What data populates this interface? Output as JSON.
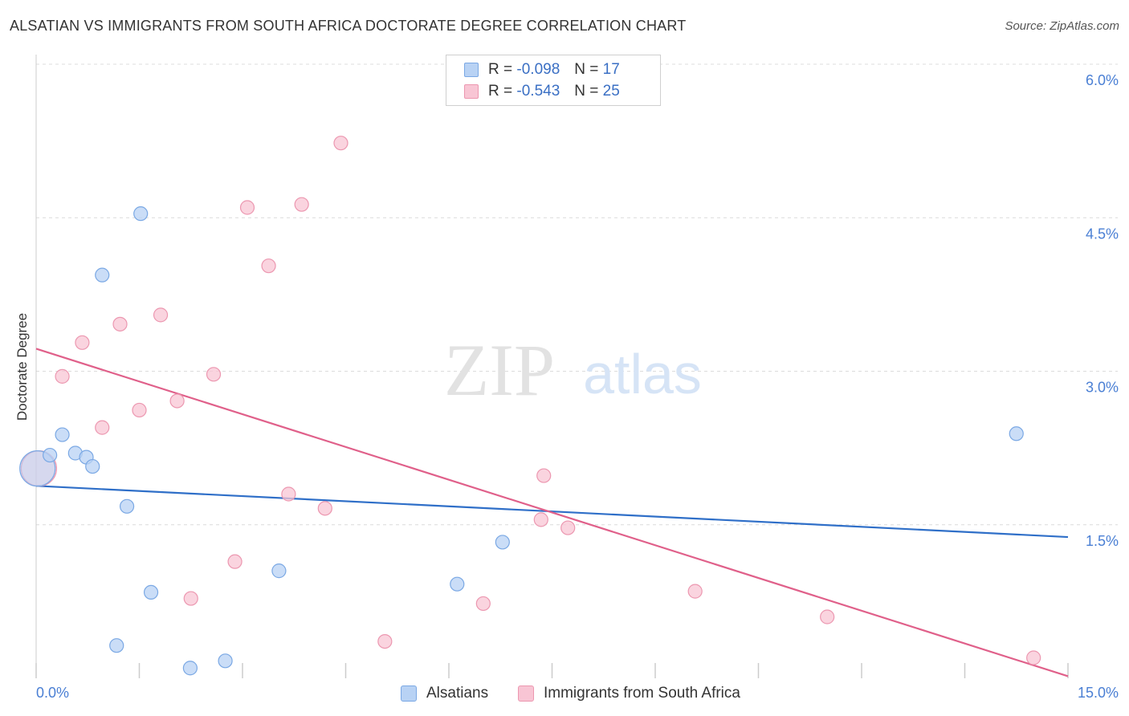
{
  "title": "ALSATIAN VS IMMIGRANTS FROM SOUTH AFRICA DOCTORATE DEGREE CORRELATION CHART",
  "source": "Source: ZipAtlas.com",
  "watermark": {
    "zip": "ZIP",
    "atlas": "atlas"
  },
  "legend_top": {
    "rows": [
      {
        "r_label": "R =",
        "r_value": "-0.098",
        "n_label": "N =",
        "n_value": "17"
      },
      {
        "r_label": "R =",
        "r_value": "-0.543",
        "n_label": "N =",
        "n_value": "25"
      }
    ]
  },
  "legend_bottom": {
    "series1": "Alsatians",
    "series2": "Immigrants from South Africa"
  },
  "colors": {
    "blue_fill": "#b8d2f4",
    "blue_stroke": "#7aa8e4",
    "blue_line": "#2f6fc8",
    "pink_fill": "#f8c5d4",
    "pink_stroke": "#ec97b0",
    "pink_line": "#e0608a",
    "grid": "#dcdcdc",
    "axis_text": "#4a7fd4"
  },
  "chart_data": {
    "type": "scatter",
    "title": "ALSATIAN VS IMMIGRANTS FROM SOUTH AFRICA DOCTORATE DEGREE CORRELATION CHART",
    "xlabel": "",
    "ylabel": "Doctorate Degree",
    "xlim": [
      0,
      15
    ],
    "ylim": [
      0,
      6
    ],
    "x_tick_labels": [
      "0.0%",
      "15.0%"
    ],
    "y_ticks": [
      1.5,
      3.0,
      4.5,
      6.0
    ],
    "y_tick_labels": [
      "1.5%",
      "3.0%",
      "4.5%",
      "6.0%"
    ],
    "series": [
      {
        "name": "Alsatians",
        "r": -0.098,
        "n": 17,
        "trend": {
          "x": [
            0,
            15
          ],
          "y": [
            1.88,
            1.38
          ]
        },
        "points": [
          {
            "x": 0.02,
            "y": 2.05,
            "big": true
          },
          {
            "x": 0.2,
            "y": 2.18
          },
          {
            "x": 0.38,
            "y": 2.38
          },
          {
            "x": 0.57,
            "y": 2.2
          },
          {
            "x": 0.73,
            "y": 2.16
          },
          {
            "x": 0.82,
            "y": 2.07
          },
          {
            "x": 0.96,
            "y": 3.94
          },
          {
            "x": 1.52,
            "y": 4.54
          },
          {
            "x": 1.32,
            "y": 1.68
          },
          {
            "x": 1.67,
            "y": 0.84
          },
          {
            "x": 1.17,
            "y": 0.32
          },
          {
            "x": 2.24,
            "y": 0.1
          },
          {
            "x": 2.75,
            "y": 0.17
          },
          {
            "x": 3.53,
            "y": 1.05
          },
          {
            "x": 6.12,
            "y": 0.92
          },
          {
            "x": 6.78,
            "y": 1.33
          },
          {
            "x": 14.25,
            "y": 2.39
          }
        ]
      },
      {
        "name": "Immigrants from South Africa",
        "r": -0.543,
        "n": 25,
        "trend": {
          "x": [
            0,
            15
          ],
          "y": [
            3.22,
            0.02
          ]
        },
        "points": [
          {
            "x": 0.04,
            "y": 2.05,
            "big": true
          },
          {
            "x": 0.67,
            "y": 3.28
          },
          {
            "x": 0.38,
            "y": 2.95
          },
          {
            "x": 1.22,
            "y": 3.46
          },
          {
            "x": 1.81,
            "y": 3.55
          },
          {
            "x": 0.96,
            "y": 2.45
          },
          {
            "x": 1.5,
            "y": 2.62
          },
          {
            "x": 2.05,
            "y": 2.71
          },
          {
            "x": 2.58,
            "y": 2.97
          },
          {
            "x": 3.07,
            "y": 4.6
          },
          {
            "x": 3.38,
            "y": 4.03
          },
          {
            "x": 3.86,
            "y": 4.63
          },
          {
            "x": 4.43,
            "y": 5.23
          },
          {
            "x": 3.67,
            "y": 1.8
          },
          {
            "x": 4.2,
            "y": 1.66
          },
          {
            "x": 2.89,
            "y": 1.14
          },
          {
            "x": 2.25,
            "y": 0.78
          },
          {
            "x": 5.07,
            "y": 0.36
          },
          {
            "x": 6.5,
            "y": 0.73
          },
          {
            "x": 7.38,
            "y": 1.98
          },
          {
            "x": 7.34,
            "y": 1.55
          },
          {
            "x": 7.73,
            "y": 1.47
          },
          {
            "x": 9.58,
            "y": 0.85
          },
          {
            "x": 11.5,
            "y": 0.6
          },
          {
            "x": 14.5,
            "y": 0.2
          }
        ]
      }
    ]
  }
}
